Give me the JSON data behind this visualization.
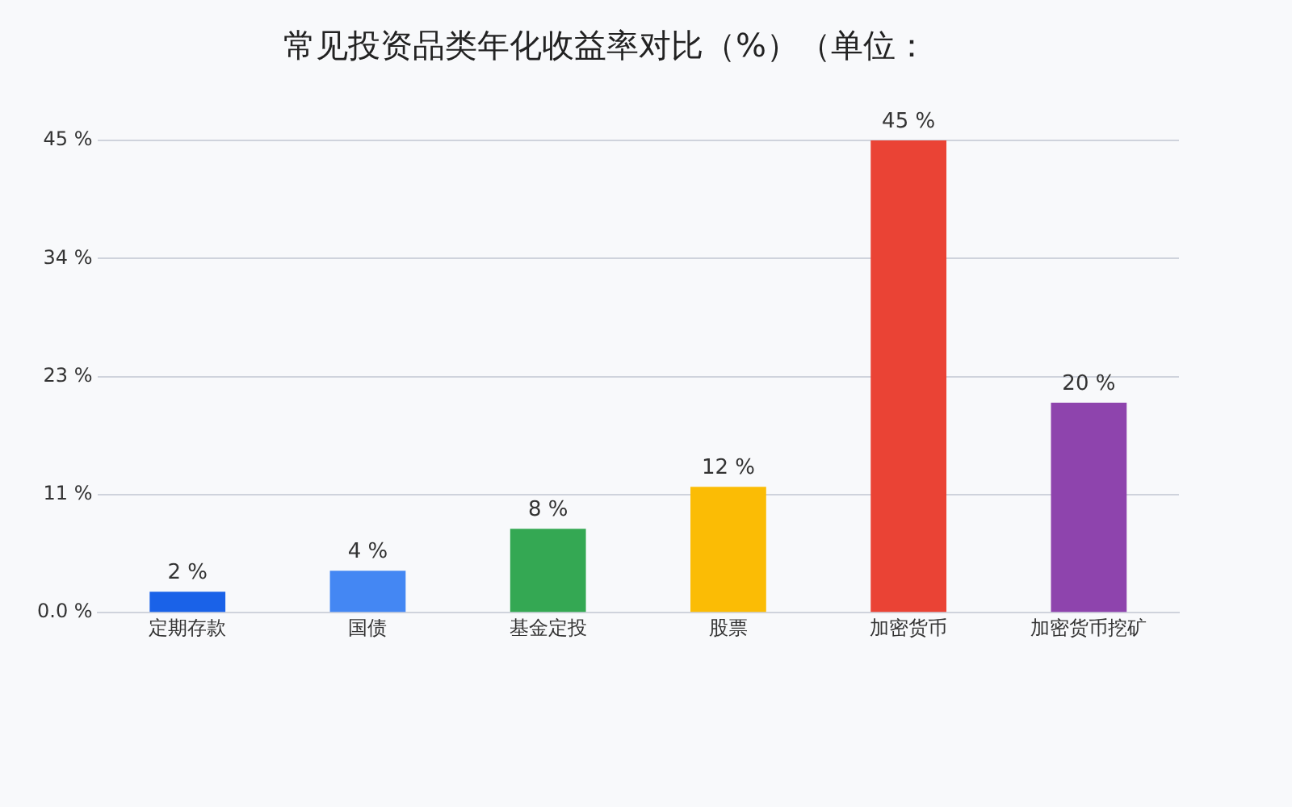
{
  "chart_data": {
    "type": "bar",
    "title": "常见投资品类年化收益率对比（%）（单位：",
    "categories": [
      "定期存款",
      "国债",
      "基金定投",
      "股票",
      "加密货币",
      "加密货币挖矿"
    ],
    "values": [
      2,
      4,
      8,
      12,
      45,
      20
    ],
    "colors": [
      "#1a62e8",
      "#4487f3",
      "#34a853",
      "#fbbc05",
      "#ea4335",
      "#8e44ad"
    ],
    "value_labels": [
      "2 %",
      "4 %",
      "8 %",
      "12 %",
      "45 %",
      "20 %"
    ],
    "ylim": [
      0,
      45
    ],
    "yticks": [
      {
        "value": 0,
        "label": "0.0 %"
      },
      {
        "value": 11.25,
        "label": "11 %"
      },
      {
        "value": 22.5,
        "label": "23 %"
      },
      {
        "value": 33.75,
        "label": "34 %"
      },
      {
        "value": 45,
        "label": "45 %"
      }
    ],
    "grid": "y",
    "legend": false
  }
}
